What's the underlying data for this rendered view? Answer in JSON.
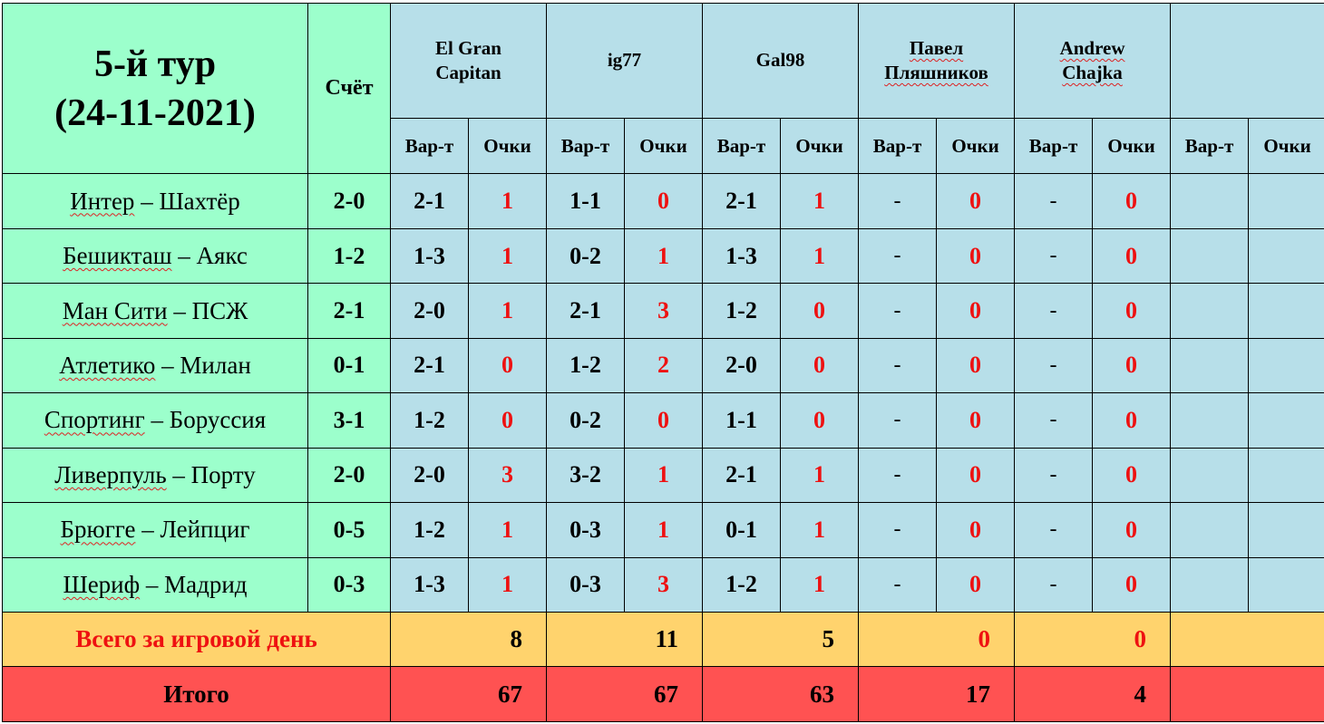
{
  "header": {
    "round_title_line1": "5-й тур",
    "round_title_line2": "(24-11-2021)",
    "score_label": "Счёт",
    "guess_label": "Вар-т",
    "points_label": "Очки",
    "players": [
      {
        "line1": "El Gran",
        "line2": "Capitan"
      },
      {
        "line1": "ig77",
        "line2": ""
      },
      {
        "line1": "Gal98",
        "line2": ""
      },
      {
        "line1": "Павел",
        "line2": "Пляшников"
      },
      {
        "line1": "Andrew",
        "line2": "Chajka"
      },
      {
        "line1": "",
        "line2": ""
      }
    ]
  },
  "matches": [
    {
      "home": "Интер",
      "away": "Шахтёр",
      "score": "2-0",
      "preds": [
        [
          "2-1",
          "1"
        ],
        [
          "1-1",
          "0"
        ],
        [
          "2-1",
          "1"
        ],
        [
          "-",
          "0"
        ],
        [
          "-",
          "0"
        ],
        [
          "",
          ""
        ]
      ]
    },
    {
      "home": "Бешикташ",
      "away": "Аякс",
      "score": "1-2",
      "preds": [
        [
          "1-3",
          "1"
        ],
        [
          "0-2",
          "1"
        ],
        [
          "1-3",
          "1"
        ],
        [
          "-",
          "0"
        ],
        [
          "-",
          "0"
        ],
        [
          "",
          ""
        ]
      ]
    },
    {
      "home": "Ман Сити",
      "away": "ПСЖ",
      "score": "2-1",
      "preds": [
        [
          "2-0",
          "1"
        ],
        [
          "2-1",
          "3"
        ],
        [
          "1-2",
          "0"
        ],
        [
          "-",
          "0"
        ],
        [
          "-",
          "0"
        ],
        [
          "",
          ""
        ]
      ]
    },
    {
      "home": "Атлетико",
      "away": "Милан",
      "score": "0-1",
      "preds": [
        [
          "2-1",
          "0"
        ],
        [
          "1-2",
          "2"
        ],
        [
          "2-0",
          "0"
        ],
        [
          "-",
          "0"
        ],
        [
          "-",
          "0"
        ],
        [
          "",
          ""
        ]
      ]
    },
    {
      "home": "Спортинг",
      "away": "Боруссия",
      "score": "3-1",
      "preds": [
        [
          "1-2",
          "0"
        ],
        [
          "0-2",
          "0"
        ],
        [
          "1-1",
          "0"
        ],
        [
          "-",
          "0"
        ],
        [
          "-",
          "0"
        ],
        [
          "",
          ""
        ]
      ]
    },
    {
      "home": "Ливерпуль",
      "away": "Порту",
      "score": "2-0",
      "preds": [
        [
          "2-0",
          "3"
        ],
        [
          "3-2",
          "1"
        ],
        [
          "2-1",
          "1"
        ],
        [
          "-",
          "0"
        ],
        [
          "-",
          "0"
        ],
        [
          "",
          ""
        ]
      ]
    },
    {
      "home": "Брюгге",
      "away": "Лейпциг",
      "score": "0-5",
      "preds": [
        [
          "1-2",
          "1"
        ],
        [
          "0-3",
          "1"
        ],
        [
          "0-1",
          "1"
        ],
        [
          "-",
          "0"
        ],
        [
          "-",
          "0"
        ],
        [
          "",
          ""
        ]
      ]
    },
    {
      "home": "Шериф",
      "away": "Мадрид",
      "score": "0-3",
      "preds": [
        [
          "1-3",
          "1"
        ],
        [
          "0-3",
          "3"
        ],
        [
          "1-2",
          "1"
        ],
        [
          "-",
          "0"
        ],
        [
          "-",
          "0"
        ],
        [
          "",
          ""
        ]
      ]
    }
  ],
  "match_separator": "–",
  "day_total": {
    "label": "Всего за игровой день",
    "values": [
      "8",
      "11",
      "5",
      "0",
      "0",
      ""
    ]
  },
  "grand_total": {
    "label": "Итого",
    "values": [
      "67",
      "67",
      "63",
      "17",
      "4",
      ""
    ]
  },
  "colors": {
    "header_green": "#9cffcc",
    "player_blue": "#b7dfe9",
    "day_yellow": "#ffd36d",
    "total_red": "#ff5252",
    "points_red": "#ee1111"
  }
}
